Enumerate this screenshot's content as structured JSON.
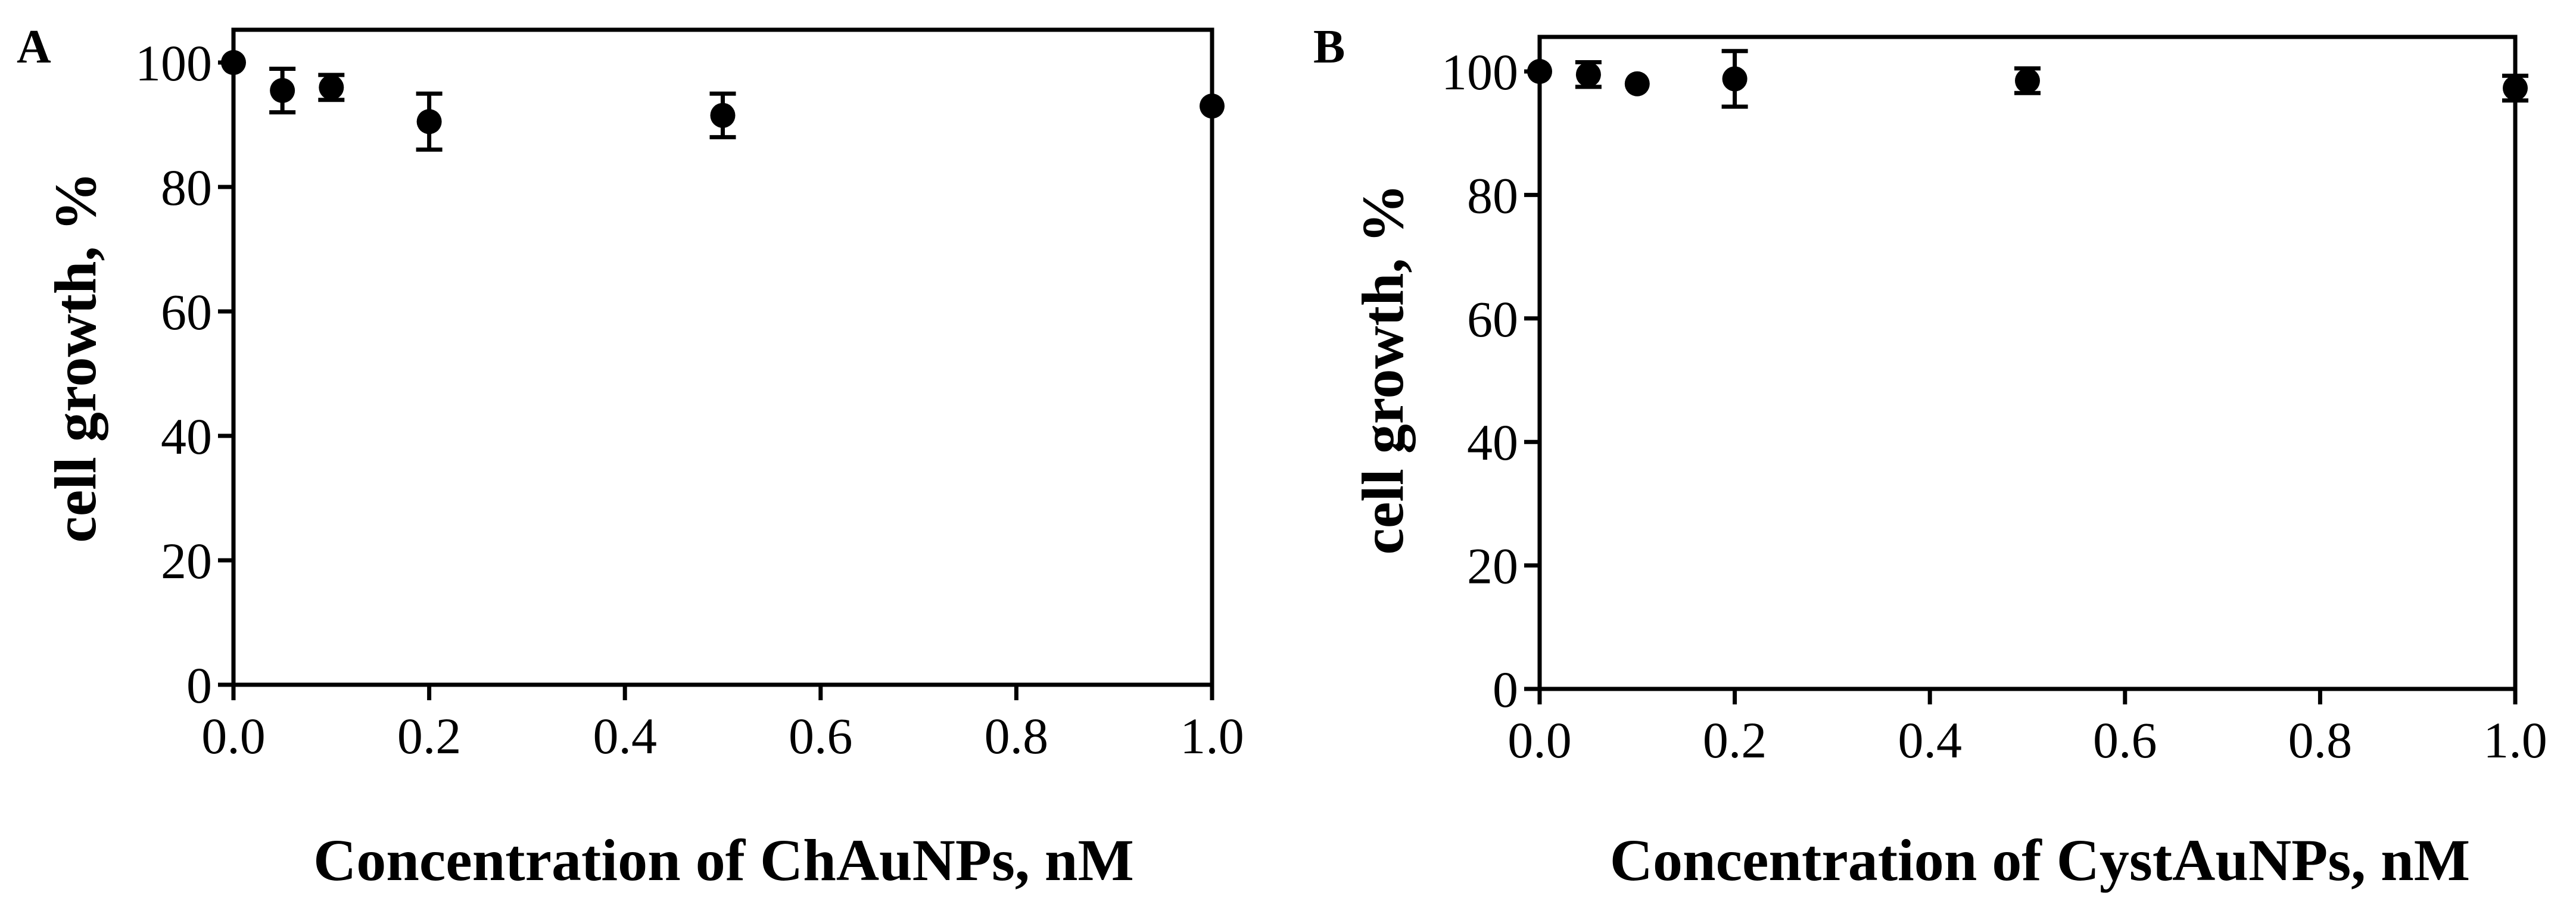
{
  "chart_data": [
    {
      "type": "scatter",
      "panel_label": "A",
      "xlabel": "Concentration of ChAuNPs, nM",
      "ylabel": "cell growth, %",
      "xlim": [
        0,
        1
      ],
      "ylim": [
        0,
        100
      ],
      "x_ticks": [
        "0.0",
        "0.2",
        "0.4",
        "0.6",
        "0.8",
        "1.0"
      ],
      "y_ticks": [
        "0",
        "20",
        "40",
        "60",
        "80",
        "100"
      ],
      "grid": false,
      "points": [
        {
          "x": 0.0,
          "y": 100,
          "err": 0
        },
        {
          "x": 0.05,
          "y": 95.5,
          "err": 3.5
        },
        {
          "x": 0.1,
          "y": 96,
          "err": 2
        },
        {
          "x": 0.2,
          "y": 90.5,
          "err": 4.5
        },
        {
          "x": 0.5,
          "y": 91.5,
          "err": 3.5
        },
        {
          "x": 1.0,
          "y": 93,
          "err": 0
        }
      ]
    },
    {
      "type": "scatter",
      "panel_label": "B",
      "xlabel": "Concentration of CystAuNPs, nM",
      "ylabel": "cell growth, %",
      "xlim": [
        0,
        1
      ],
      "ylim": [
        0,
        100
      ],
      "x_ticks": [
        "0.0",
        "0.2",
        "0.4",
        "0.6",
        "0.8",
        "1.0"
      ],
      "y_ticks": [
        "0",
        "20",
        "40",
        "60",
        "80",
        "100"
      ],
      "grid": false,
      "points": [
        {
          "x": 0.0,
          "y": 100,
          "err": 0
        },
        {
          "x": 0.05,
          "y": 99.5,
          "err": 2
        },
        {
          "x": 0.1,
          "y": 98,
          "err": 0
        },
        {
          "x": 0.2,
          "y": 98.8,
          "err": 4.5
        },
        {
          "x": 0.5,
          "y": 98.5,
          "err": 2
        },
        {
          "x": 1.0,
          "y": 97.3,
          "err": 2
        }
      ]
    }
  ]
}
